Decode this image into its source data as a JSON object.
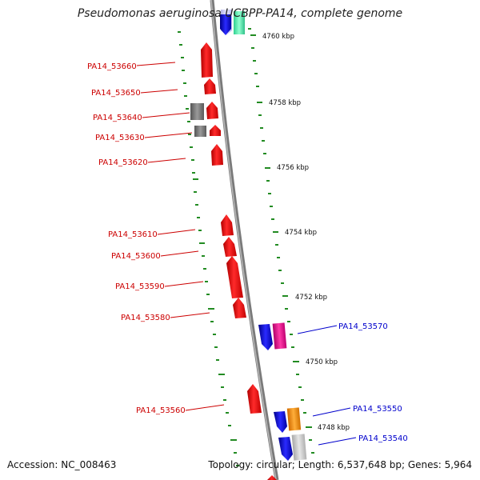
{
  "title": "Pseudomonas aeruginosa UCBPP-PA14, complete genome",
  "accession": "Accession: NC_008463",
  "stats": "Topology: circular; Length: 6,537,648 bp; Genes: 5,964",
  "colors": {
    "backbone": "#888888",
    "minor_tick": "#228b22",
    "left_gene": "#ff0000",
    "left_label": "#cc0000",
    "right_label": "#0000cc"
  },
  "scale_labels": [
    "4760 kbp",
    "4758 kbp",
    "4756 kbp",
    "4754 kbp",
    "4752 kbp",
    "4750 kbp",
    "4748 kbp"
  ],
  "left_genes": [
    "PA14_53660",
    "PA14_53650",
    "PA14_53640",
    "PA14_53630",
    "PA14_53620",
    "PA14_53610",
    "PA14_53600",
    "PA14_53590",
    "PA14_53580",
    "PA14_53560"
  ],
  "right_genes": [
    "PA14_53570",
    "PA14_53550",
    "PA14_53540"
  ]
}
